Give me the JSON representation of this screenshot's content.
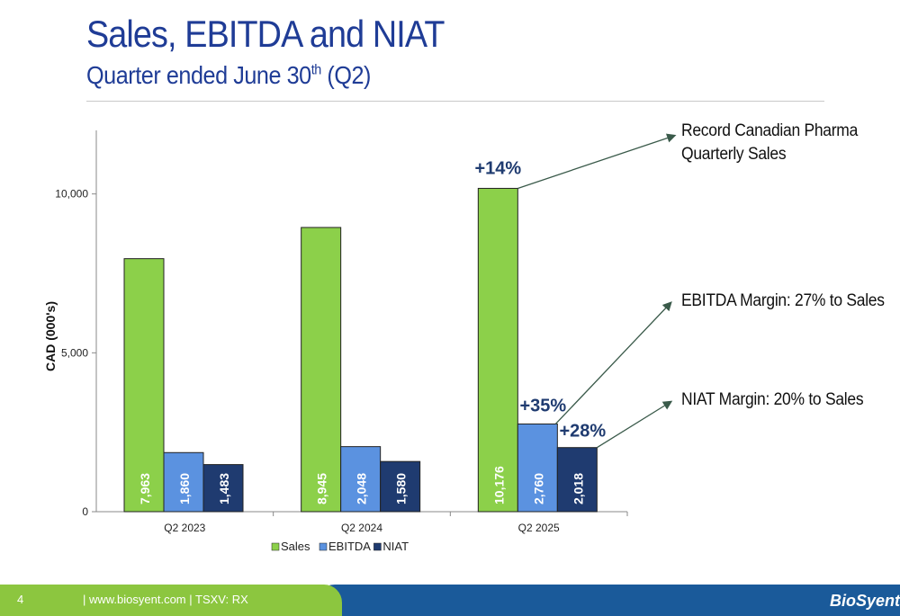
{
  "header": {
    "title": "Sales, EBITDA and NIAT",
    "subtitle_main": "Quarter ended June 30",
    "subtitle_sup": "th",
    "subtitle_end": " (Q2)"
  },
  "chart_data": {
    "type": "bar",
    "categories": [
      "Q2 2023",
      "Q2 2024",
      "Q2 2025"
    ],
    "series": [
      {
        "name": "Sales",
        "values": [
          7963,
          8945,
          10176
        ],
        "labels": [
          "7,963",
          "8,945",
          "10,176"
        ],
        "color": "#8cd04a"
      },
      {
        "name": "EBITDA",
        "values": [
          1860,
          2048,
          2760
        ],
        "labels": [
          "1,860",
          "2,048",
          "2,760"
        ],
        "color": "#5b92e0"
      },
      {
        "name": "NIAT",
        "values": [
          1483,
          1580,
          2018
        ],
        "labels": [
          "1,483",
          "1,580",
          "2,018"
        ],
        "color": "#1f3b70"
      }
    ],
    "ylabel": "CAD (000's)",
    "ylim": [
      0,
      12000
    ],
    "yticks": [
      0,
      5000,
      10000
    ],
    "ytick_labels": [
      "0",
      "5,000",
      "10,000"
    ],
    "legend": "bottom",
    "growth_labels": [
      {
        "series": "Sales",
        "category": "Q2 2025",
        "text": "+14%"
      },
      {
        "series": "EBITDA",
        "category": "Q2 2025",
        "text": "+35%"
      },
      {
        "series": "NIAT",
        "category": "Q2 2025",
        "text": "+28%"
      }
    ]
  },
  "annotations": [
    {
      "line1": "Record Canadian Pharma",
      "line2": "Quarterly Sales"
    },
    {
      "line1": "EBITDA Margin: 27% to Sales"
    },
    {
      "line1": "NIAT Margin: 20% to Sales"
    }
  ],
  "footer": {
    "page_number": "4",
    "text": "| www.biosyent.com  |  TSXV: RX",
    "logo": "BioSyent"
  },
  "colors": {
    "title": "#1f3c96",
    "footer_green": "#8cc63f",
    "footer_blue": "#1a5a9a"
  }
}
